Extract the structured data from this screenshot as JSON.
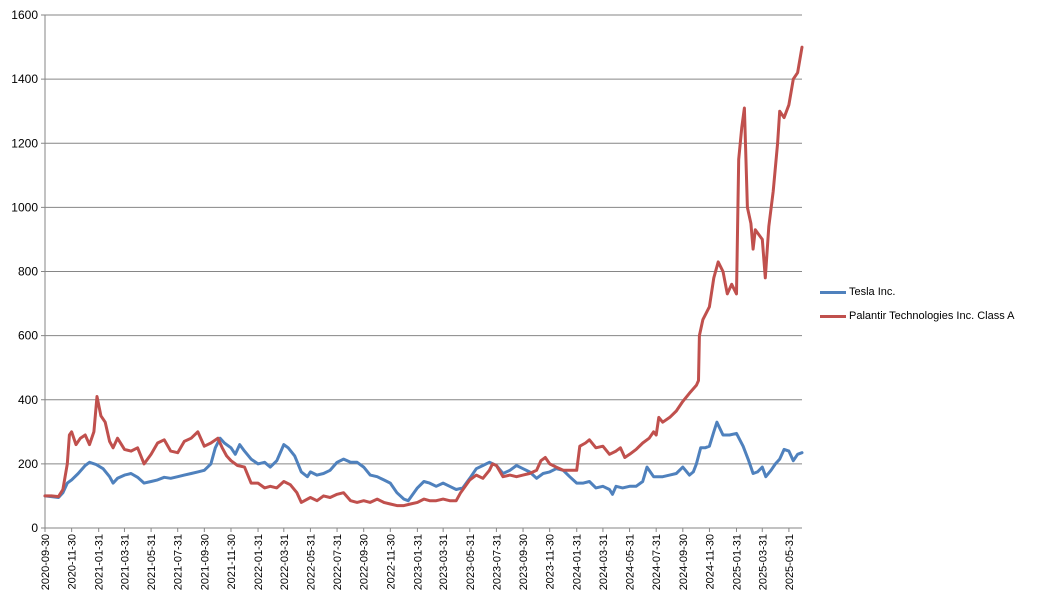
{
  "chart_data": {
    "type": "line",
    "title": "",
    "xlabel": "",
    "ylabel": "",
    "ylim": [
      0,
      1600
    ],
    "yticks": [
      "0",
      "200",
      "400",
      "600",
      "800",
      "1000",
      "1200",
      "1400",
      "1600"
    ],
    "xticks": [
      "2020-09-30",
      "2020-11-30",
      "2021-01-31",
      "2021-03-31",
      "2021-05-31",
      "2021-07-31",
      "2021-09-30",
      "2021-11-30",
      "2022-01-31",
      "2022-03-31",
      "2022-05-31",
      "2022-07-31",
      "2022-09-30",
      "2022-11-30",
      "2023-01-31",
      "2023-03-31",
      "2023-05-31",
      "2023-07-31",
      "2023-09-30",
      "2023-11-30",
      "2024-01-31",
      "2024-03-31",
      "2024-05-31",
      "2024-07-31",
      "2024-09-30",
      "2024-11-30",
      "2025-01-31",
      "2025-03-31",
      "2025-05-31"
    ],
    "xrange": [
      "2020-09-30",
      "2025-06-30"
    ],
    "grid": "horizontal",
    "legend_position": "right",
    "series": [
      {
        "name": "Tesla Inc.",
        "color": "#4F81BD",
        "points": [
          [
            "2020-09-30",
            100
          ],
          [
            "2020-10-15",
            98
          ],
          [
            "2020-10-31",
            95
          ],
          [
            "2020-11-10",
            110
          ],
          [
            "2020-11-20",
            140
          ],
          [
            "2020-11-30",
            150
          ],
          [
            "2020-12-15",
            170
          ],
          [
            "2020-12-31",
            195
          ],
          [
            "2021-01-10",
            205
          ],
          [
            "2021-01-25",
            198
          ],
          [
            "2021-02-10",
            185
          ],
          [
            "2021-02-25",
            160
          ],
          [
            "2021-03-05",
            140
          ],
          [
            "2021-03-15",
            155
          ],
          [
            "2021-03-31",
            165
          ],
          [
            "2021-04-15",
            170
          ],
          [
            "2021-04-30",
            158
          ],
          [
            "2021-05-15",
            140
          ],
          [
            "2021-05-31",
            145
          ],
          [
            "2021-06-15",
            150
          ],
          [
            "2021-06-30",
            158
          ],
          [
            "2021-07-15",
            155
          ],
          [
            "2021-07-31",
            160
          ],
          [
            "2021-08-15",
            165
          ],
          [
            "2021-08-31",
            170
          ],
          [
            "2021-09-15",
            175
          ],
          [
            "2021-09-30",
            180
          ],
          [
            "2021-10-15",
            200
          ],
          [
            "2021-10-25",
            250
          ],
          [
            "2021-11-05",
            280
          ],
          [
            "2021-11-15",
            265
          ],
          [
            "2021-11-30",
            250
          ],
          [
            "2021-12-10",
            230
          ],
          [
            "2021-12-20",
            260
          ],
          [
            "2021-12-31",
            240
          ],
          [
            "2022-01-15",
            215
          ],
          [
            "2022-01-31",
            200
          ],
          [
            "2022-02-15",
            205
          ],
          [
            "2022-02-28",
            190
          ],
          [
            "2022-03-15",
            210
          ],
          [
            "2022-03-31",
            260
          ],
          [
            "2022-04-10",
            250
          ],
          [
            "2022-04-25",
            225
          ],
          [
            "2022-05-10",
            175
          ],
          [
            "2022-05-24",
            160
          ],
          [
            "2022-05-31",
            175
          ],
          [
            "2022-06-15",
            165
          ],
          [
            "2022-06-30",
            170
          ],
          [
            "2022-07-15",
            180
          ],
          [
            "2022-07-31",
            205
          ],
          [
            "2022-08-15",
            215
          ],
          [
            "2022-08-31",
            205
          ],
          [
            "2022-09-15",
            205
          ],
          [
            "2022-09-30",
            190
          ],
          [
            "2022-10-15",
            165
          ],
          [
            "2022-10-31",
            160
          ],
          [
            "2022-11-15",
            150
          ],
          [
            "2022-11-30",
            140
          ],
          [
            "2022-12-15",
            110
          ],
          [
            "2022-12-31",
            90
          ],
          [
            "2023-01-10",
            85
          ],
          [
            "2023-01-31",
            125
          ],
          [
            "2023-02-15",
            145
          ],
          [
            "2023-02-28",
            140
          ],
          [
            "2023-03-15",
            130
          ],
          [
            "2023-03-31",
            140
          ],
          [
            "2023-04-15",
            130
          ],
          [
            "2023-04-30",
            120
          ],
          [
            "2023-05-15",
            125
          ],
          [
            "2023-05-31",
            155
          ],
          [
            "2023-06-15",
            185
          ],
          [
            "2023-06-30",
            195
          ],
          [
            "2023-07-15",
            205
          ],
          [
            "2023-07-31",
            195
          ],
          [
            "2023-08-15",
            170
          ],
          [
            "2023-08-31",
            180
          ],
          [
            "2023-09-15",
            195
          ],
          [
            "2023-09-30",
            185
          ],
          [
            "2023-10-15",
            175
          ],
          [
            "2023-10-31",
            155
          ],
          [
            "2023-11-15",
            170
          ],
          [
            "2023-11-30",
            175
          ],
          [
            "2023-12-15",
            185
          ],
          [
            "2023-12-31",
            180
          ],
          [
            "2024-01-15",
            160
          ],
          [
            "2024-01-31",
            140
          ],
          [
            "2024-02-15",
            140
          ],
          [
            "2024-02-29",
            145
          ],
          [
            "2024-03-15",
            125
          ],
          [
            "2024-03-31",
            130
          ],
          [
            "2024-04-15",
            120
          ],
          [
            "2024-04-22",
            105
          ],
          [
            "2024-04-30",
            130
          ],
          [
            "2024-05-15",
            125
          ],
          [
            "2024-05-31",
            130
          ],
          [
            "2024-06-15",
            130
          ],
          [
            "2024-06-30",
            145
          ],
          [
            "2024-07-10",
            190
          ],
          [
            "2024-07-25",
            160
          ],
          [
            "2024-07-31",
            160
          ],
          [
            "2024-08-15",
            160
          ],
          [
            "2024-08-31",
            165
          ],
          [
            "2024-09-15",
            170
          ],
          [
            "2024-09-30",
            190
          ],
          [
            "2024-10-15",
            165
          ],
          [
            "2024-10-24",
            175
          ],
          [
            "2024-10-31",
            200
          ],
          [
            "2024-11-10",
            250
          ],
          [
            "2024-11-20",
            250
          ],
          [
            "2024-11-30",
            255
          ],
          [
            "2024-12-10",
            300
          ],
          [
            "2024-12-17",
            330
          ],
          [
            "2024-12-31",
            290
          ],
          [
            "2025-01-15",
            290
          ],
          [
            "2025-01-31",
            295
          ],
          [
            "2025-02-15",
            255
          ],
          [
            "2025-02-28",
            210
          ],
          [
            "2025-03-10",
            170
          ],
          [
            "2025-03-20",
            175
          ],
          [
            "2025-03-31",
            190
          ],
          [
            "2025-04-08",
            160
          ],
          [
            "2025-04-20",
            180
          ],
          [
            "2025-04-30",
            200
          ],
          [
            "2025-05-10",
            215
          ],
          [
            "2025-05-20",
            245
          ],
          [
            "2025-05-31",
            240
          ],
          [
            "2025-06-10",
            210
          ],
          [
            "2025-06-20",
            230
          ],
          [
            "2025-06-30",
            235
          ]
        ]
      },
      {
        "name": "Palantir Technologies Inc. Class A",
        "color": "#C0504D",
        "points": [
          [
            "2020-09-30",
            100
          ],
          [
            "2020-10-15",
            100
          ],
          [
            "2020-10-31",
            98
          ],
          [
            "2020-11-10",
            120
          ],
          [
            "2020-11-20",
            200
          ],
          [
            "2020-11-25",
            290
          ],
          [
            "2020-11-30",
            300
          ],
          [
            "2020-12-10",
            260
          ],
          [
            "2020-12-20",
            280
          ],
          [
            "2020-12-31",
            290
          ],
          [
            "2021-01-10",
            260
          ],
          [
            "2021-01-20",
            300
          ],
          [
            "2021-01-27",
            410
          ],
          [
            "2021-02-05",
            350
          ],
          [
            "2021-02-15",
            330
          ],
          [
            "2021-02-25",
            270
          ],
          [
            "2021-03-05",
            250
          ],
          [
            "2021-03-15",
            280
          ],
          [
            "2021-03-31",
            245
          ],
          [
            "2021-04-15",
            240
          ],
          [
            "2021-04-30",
            250
          ],
          [
            "2021-05-15",
            200
          ],
          [
            "2021-05-31",
            230
          ],
          [
            "2021-06-15",
            265
          ],
          [
            "2021-06-30",
            275
          ],
          [
            "2021-07-15",
            240
          ],
          [
            "2021-07-31",
            235
          ],
          [
            "2021-08-15",
            270
          ],
          [
            "2021-08-31",
            280
          ],
          [
            "2021-09-15",
            300
          ],
          [
            "2021-09-30",
            255
          ],
          [
            "2021-10-15",
            265
          ],
          [
            "2021-10-31",
            280
          ],
          [
            "2021-11-10",
            250
          ],
          [
            "2021-11-20",
            225
          ],
          [
            "2021-11-30",
            210
          ],
          [
            "2021-12-15",
            195
          ],
          [
            "2021-12-31",
            190
          ],
          [
            "2022-01-15",
            140
          ],
          [
            "2022-01-31",
            140
          ],
          [
            "2022-02-15",
            125
          ],
          [
            "2022-02-28",
            130
          ],
          [
            "2022-03-15",
            125
          ],
          [
            "2022-03-31",
            145
          ],
          [
            "2022-04-15",
            135
          ],
          [
            "2022-04-30",
            110
          ],
          [
            "2022-05-10",
            80
          ],
          [
            "2022-05-31",
            95
          ],
          [
            "2022-06-15",
            85
          ],
          [
            "2022-06-30",
            100
          ],
          [
            "2022-07-15",
            95
          ],
          [
            "2022-07-31",
            105
          ],
          [
            "2022-08-15",
            110
          ],
          [
            "2022-08-31",
            85
          ],
          [
            "2022-09-15",
            80
          ],
          [
            "2022-09-30",
            85
          ],
          [
            "2022-10-15",
            80
          ],
          [
            "2022-10-31",
            90
          ],
          [
            "2022-11-15",
            80
          ],
          [
            "2022-11-30",
            75
          ],
          [
            "2022-12-15",
            70
          ],
          [
            "2022-12-31",
            70
          ],
          [
            "2023-01-15",
            75
          ],
          [
            "2023-01-31",
            80
          ],
          [
            "2023-02-15",
            90
          ],
          [
            "2023-02-28",
            85
          ],
          [
            "2023-03-15",
            85
          ],
          [
            "2023-03-31",
            90
          ],
          [
            "2023-04-15",
            85
          ],
          [
            "2023-04-30",
            85
          ],
          [
            "2023-05-10",
            110
          ],
          [
            "2023-05-31",
            150
          ],
          [
            "2023-06-15",
            165
          ],
          [
            "2023-06-30",
            155
          ],
          [
            "2023-07-15",
            180
          ],
          [
            "2023-07-22",
            200
          ],
          [
            "2023-07-31",
            195
          ],
          [
            "2023-08-15",
            160
          ],
          [
            "2023-08-31",
            165
          ],
          [
            "2023-09-15",
            160
          ],
          [
            "2023-09-30",
            165
          ],
          [
            "2023-10-15",
            170
          ],
          [
            "2023-10-31",
            180
          ],
          [
            "2023-11-10",
            210
          ],
          [
            "2023-11-20",
            220
          ],
          [
            "2023-11-30",
            200
          ],
          [
            "2023-12-15",
            190
          ],
          [
            "2023-12-31",
            180
          ],
          [
            "2024-01-15",
            180
          ],
          [
            "2024-01-31",
            180
          ],
          [
            "2024-02-07",
            255
          ],
          [
            "2024-02-20",
            265
          ],
          [
            "2024-02-29",
            275
          ],
          [
            "2024-03-15",
            250
          ],
          [
            "2024-03-31",
            255
          ],
          [
            "2024-04-15",
            230
          ],
          [
            "2024-04-30",
            240
          ],
          [
            "2024-05-10",
            250
          ],
          [
            "2024-05-20",
            220
          ],
          [
            "2024-05-31",
            230
          ],
          [
            "2024-06-15",
            245
          ],
          [
            "2024-06-30",
            265
          ],
          [
            "2024-07-15",
            280
          ],
          [
            "2024-07-25",
            300
          ],
          [
            "2024-07-31",
            290
          ],
          [
            "2024-08-06",
            345
          ],
          [
            "2024-08-15",
            330
          ],
          [
            "2024-08-31",
            345
          ],
          [
            "2024-09-15",
            365
          ],
          [
            "2024-09-30",
            395
          ],
          [
            "2024-10-15",
            420
          ],
          [
            "2024-10-31",
            445
          ],
          [
            "2024-11-05",
            460
          ],
          [
            "2024-11-07",
            600
          ],
          [
            "2024-11-15",
            650
          ],
          [
            "2024-11-30",
            690
          ],
          [
            "2024-12-10",
            780
          ],
          [
            "2024-12-20",
            830
          ],
          [
            "2024-12-31",
            800
          ],
          [
            "2025-01-10",
            730
          ],
          [
            "2025-01-20",
            760
          ],
          [
            "2025-01-31",
            730
          ],
          [
            "2025-02-05",
            1150
          ],
          [
            "2025-02-12",
            1250
          ],
          [
            "2025-02-18",
            1310
          ],
          [
            "2025-02-25",
            1000
          ],
          [
            "2025-03-05",
            950
          ],
          [
            "2025-03-10",
            870
          ],
          [
            "2025-03-15",
            930
          ],
          [
            "2025-03-31",
            900
          ],
          [
            "2025-04-07",
            780
          ],
          [
            "2025-04-15",
            940
          ],
          [
            "2025-04-25",
            1050
          ],
          [
            "2025-05-05",
            1200
          ],
          [
            "2025-05-10",
            1300
          ],
          [
            "2025-05-20",
            1280
          ],
          [
            "2025-05-31",
            1320
          ],
          [
            "2025-06-10",
            1400
          ],
          [
            "2025-06-20",
            1420
          ],
          [
            "2025-06-30",
            1500
          ]
        ]
      }
    ]
  }
}
